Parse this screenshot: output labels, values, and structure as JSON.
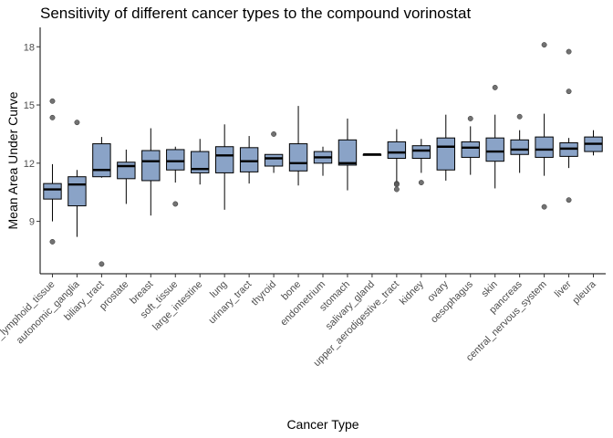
{
  "chart_data": {
    "type": "box",
    "title": "Sensitivity of different cancer types to the compound vorinostat",
    "xlabel": "Cancer Type",
    "ylabel": "Mean Area Under Curve",
    "ylim": [
      6.3,
      19.0
    ],
    "yticks": [
      9,
      12,
      15,
      18
    ],
    "grid": false,
    "colors": {
      "box_fill": "#8aa3c7",
      "outline": "#000000",
      "outlier": "#595959"
    },
    "categories": [
      "haematopoietic_and_lymphoid_tissue",
      "autonomic_ganglia",
      "biliary_tract",
      "prostate",
      "breast",
      "soft_tissue",
      "large_intestine",
      "lung",
      "urinary_tract",
      "thyroid",
      "bone",
      "endometrium",
      "stomach",
      "salivary_gland",
      "upper_aerodigestive_tract",
      "kidney",
      "ovary",
      "oesophagus",
      "skin",
      "pancreas",
      "central_nervous_system",
      "liver",
      "pleura"
    ],
    "boxes": [
      {
        "min": 9.0,
        "q1": 10.15,
        "median": 10.65,
        "q3": 10.95,
        "max": 11.95,
        "outliers": [
          15.2,
          14.35,
          7.95
        ]
      },
      {
        "min": 8.2,
        "q1": 9.8,
        "median": 10.9,
        "q3": 11.3,
        "max": 11.65,
        "outliers": [
          14.1
        ]
      },
      {
        "min": 11.25,
        "q1": 11.3,
        "median": 11.65,
        "q3": 13.0,
        "max": 13.35,
        "outliers": [
          6.8
        ]
      },
      {
        "min": 9.9,
        "q1": 11.2,
        "median": 11.85,
        "q3": 12.05,
        "max": 12.7,
        "outliers": []
      },
      {
        "min": 9.3,
        "q1": 11.1,
        "median": 12.1,
        "q3": 12.65,
        "max": 13.8,
        "outliers": []
      },
      {
        "min": 11.0,
        "q1": 11.65,
        "median": 12.1,
        "q3": 12.7,
        "max": 12.85,
        "outliers": [
          9.9
        ]
      },
      {
        "min": 10.9,
        "q1": 11.5,
        "median": 11.7,
        "q3": 12.6,
        "max": 13.25,
        "outliers": []
      },
      {
        "min": 9.6,
        "q1": 11.5,
        "median": 12.4,
        "q3": 12.85,
        "max": 14.0,
        "outliers": []
      },
      {
        "min": 10.95,
        "q1": 11.55,
        "median": 12.1,
        "q3": 12.8,
        "max": 13.4,
        "outliers": []
      },
      {
        "min": 11.5,
        "q1": 11.85,
        "median": 12.25,
        "q3": 12.45,
        "max": 12.45,
        "outliers": [
          13.5
        ]
      },
      {
        "min": 10.85,
        "q1": 11.6,
        "median": 12.0,
        "q3": 13.0,
        "max": 14.95,
        "outliers": []
      },
      {
        "min": 11.35,
        "q1": 12.0,
        "median": 12.3,
        "q3": 12.6,
        "max": 12.85,
        "outliers": []
      },
      {
        "min": 10.6,
        "q1": 11.9,
        "median": 12.0,
        "q3": 13.2,
        "max": 14.3,
        "outliers": []
      },
      {
        "min": 12.4,
        "q1": 12.4,
        "median": 12.45,
        "q3": 12.45,
        "max": 12.45,
        "outliers": []
      },
      {
        "min": 11.0,
        "q1": 12.25,
        "median": 12.55,
        "q3": 13.1,
        "max": 13.75,
        "outliers": [
          10.95,
          10.9,
          10.65
        ]
      },
      {
        "min": 11.5,
        "q1": 12.25,
        "median": 12.65,
        "q3": 12.9,
        "max": 13.25,
        "outliers": [
          11.0
        ]
      },
      {
        "min": 11.1,
        "q1": 11.65,
        "median": 12.85,
        "q3": 13.3,
        "max": 14.5,
        "outliers": []
      },
      {
        "min": 11.4,
        "q1": 12.3,
        "median": 12.8,
        "q3": 13.1,
        "max": 13.9,
        "outliers": [
          14.3
        ]
      },
      {
        "min": 10.7,
        "q1": 12.1,
        "median": 12.6,
        "q3": 13.3,
        "max": 14.5,
        "outliers": [
          15.9
        ]
      },
      {
        "min": 11.5,
        "q1": 12.45,
        "median": 12.7,
        "q3": 13.2,
        "max": 13.7,
        "outliers": [
          14.4
        ]
      },
      {
        "min": 11.35,
        "q1": 12.3,
        "median": 12.7,
        "q3": 13.35,
        "max": 14.55,
        "outliers": [
          18.1,
          9.75
        ]
      },
      {
        "min": 11.75,
        "q1": 12.35,
        "median": 12.75,
        "q3": 13.05,
        "max": 13.3,
        "outliers": [
          17.75,
          15.7,
          10.1
        ]
      },
      {
        "min": 12.4,
        "q1": 12.6,
        "median": 13.0,
        "q3": 13.35,
        "max": 13.7,
        "outliers": []
      }
    ]
  }
}
